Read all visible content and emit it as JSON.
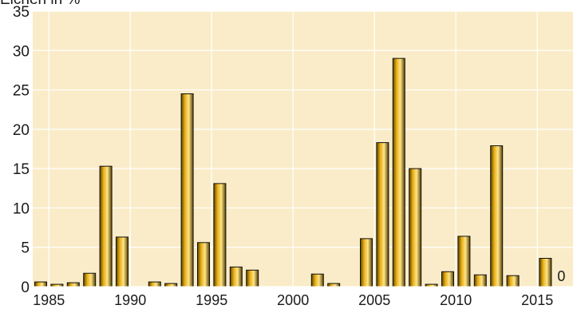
{
  "chart_data": {
    "type": "bar",
    "ylabel": "Eichen in %",
    "ylim": [
      0,
      35
    ],
    "y_ticks": [
      "0",
      "5",
      "10",
      "15",
      "20",
      "25",
      "30",
      "35"
    ],
    "x_tick_labels": [
      "1985",
      "1990",
      "1995",
      "2000",
      "2005",
      "2010",
      "2015"
    ],
    "grid": true,
    "colors": {
      "plot_background": "#faecc8",
      "grid": "#ffffff",
      "bar_dark": "#5a4300",
      "bar_mid": "#e7ad12",
      "bar_light": "#ffe488",
      "bar_outline": "#111111"
    },
    "categories": [
      1984,
      1985,
      1986,
      1987,
      1988,
      1989,
      1990,
      1991,
      1992,
      1993,
      1994,
      1995,
      1996,
      1997,
      1998,
      1999,
      2000,
      2001,
      2002,
      2003,
      2004,
      2005,
      2006,
      2007,
      2008,
      2009,
      2010,
      2011,
      2012,
      2013,
      2014,
      2015
    ],
    "values": [
      0.6,
      0.3,
      0.5,
      1.7,
      15.3,
      6.3,
      0,
      0.6,
      0.4,
      24.5,
      5.6,
      13.1,
      2.5,
      2.1,
      0,
      0,
      0,
      1.6,
      0.4,
      0,
      6.1,
      18.3,
      29.0,
      15.0,
      0.3,
      1.9,
      6.4,
      1.5,
      17.9,
      1.4,
      0,
      3.6
    ],
    "annotations": [
      {
        "text": "0",
        "category": 2015
      }
    ]
  }
}
